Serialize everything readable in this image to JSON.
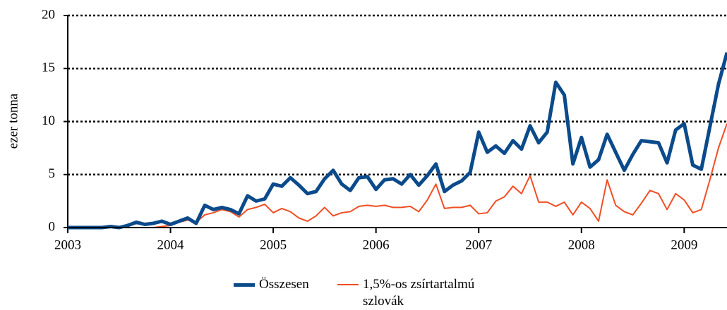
{
  "chart_data": {
    "type": "line",
    "y_label": "ezer tonna",
    "categories": [
      "2003",
      null,
      null,
      null,
      null,
      null,
      null,
      null,
      null,
      null,
      null,
      null,
      "2004",
      null,
      null,
      null,
      null,
      null,
      null,
      null,
      null,
      null,
      null,
      null,
      "2005",
      null,
      null,
      null,
      null,
      null,
      null,
      null,
      null,
      null,
      null,
      null,
      "2006",
      null,
      null,
      null,
      null,
      null,
      null,
      null,
      null,
      null,
      null,
      null,
      "2007",
      null,
      null,
      null,
      null,
      null,
      null,
      null,
      null,
      null,
      null,
      null,
      "2008",
      null,
      null,
      null,
      null,
      null,
      null,
      null,
      null,
      null,
      null,
      null,
      "2009",
      null,
      null,
      null,
      null,
      null
    ],
    "series": [
      {
        "name": "Összesen",
        "color": "#0b4a8b",
        "width": 5,
        "values": [
          0,
          0,
          0,
          0,
          0,
          0.1,
          0,
          0.2,
          0.5,
          0.3,
          0.4,
          0.6,
          0.3,
          0.6,
          0.9,
          0.4,
          2.1,
          1.7,
          1.9,
          1.7,
          1.3,
          3.0,
          2.5,
          2.7,
          4.1,
          3.9,
          4.7,
          4.0,
          3.2,
          3.4,
          4.6,
          5.4,
          4.1,
          3.5,
          4.7,
          4.8,
          3.6,
          4.5,
          4.6,
          4.1,
          5.0,
          4.0,
          4.9,
          6.0,
          3.4,
          4.0,
          4.4,
          5.2,
          9.0,
          7.1,
          7.7,
          7.0,
          8.2,
          7.4,
          9.6,
          8.0,
          9.0,
          13.7,
          12.5,
          6.0,
          8.5,
          5.7,
          6.4,
          8.8,
          7.1,
          5.4,
          6.9,
          8.2,
          8.1,
          8.0,
          6.1,
          9.2,
          9.8,
          5.9,
          5.5,
          9.5,
          13.5,
          16.5
        ]
      },
      {
        "name": "1,5%-os zsírtartalmú szlovák",
        "color": "#f04e23",
        "width": 2,
        "values": [
          0,
          0,
          0,
          0,
          0,
          0,
          0,
          0,
          0,
          0,
          0,
          0.1,
          0.2,
          0.5,
          0.7,
          0.5,
          1.2,
          1.4,
          1.7,
          1.5,
          1.0,
          1.7,
          1.9,
          2.2,
          1.4,
          1.8,
          1.5,
          0.9,
          0.6,
          1.1,
          1.9,
          1.1,
          1.4,
          1.5,
          2.0,
          2.1,
          2.0,
          2.1,
          1.9,
          1.9,
          2.0,
          1.5,
          2.6,
          4.1,
          1.8,
          1.9,
          1.9,
          2.1,
          1.3,
          1.4,
          2.5,
          2.9,
          3.9,
          3.2,
          4.9,
          2.4,
          2.4,
          2.0,
          2.4,
          1.2,
          2.4,
          1.8,
          0.6,
          4.5,
          2.1,
          1.5,
          1.2,
          2.3,
          3.5,
          3.2,
          1.7,
          3.2,
          2.6,
          1.4,
          1.7,
          4.5,
          7.5,
          9.8
        ]
      }
    ],
    "ylim": [
      0,
      20
    ],
    "yticks": [
      0,
      5,
      10,
      15,
      20
    ],
    "grid": true,
    "legend": "bottom"
  }
}
